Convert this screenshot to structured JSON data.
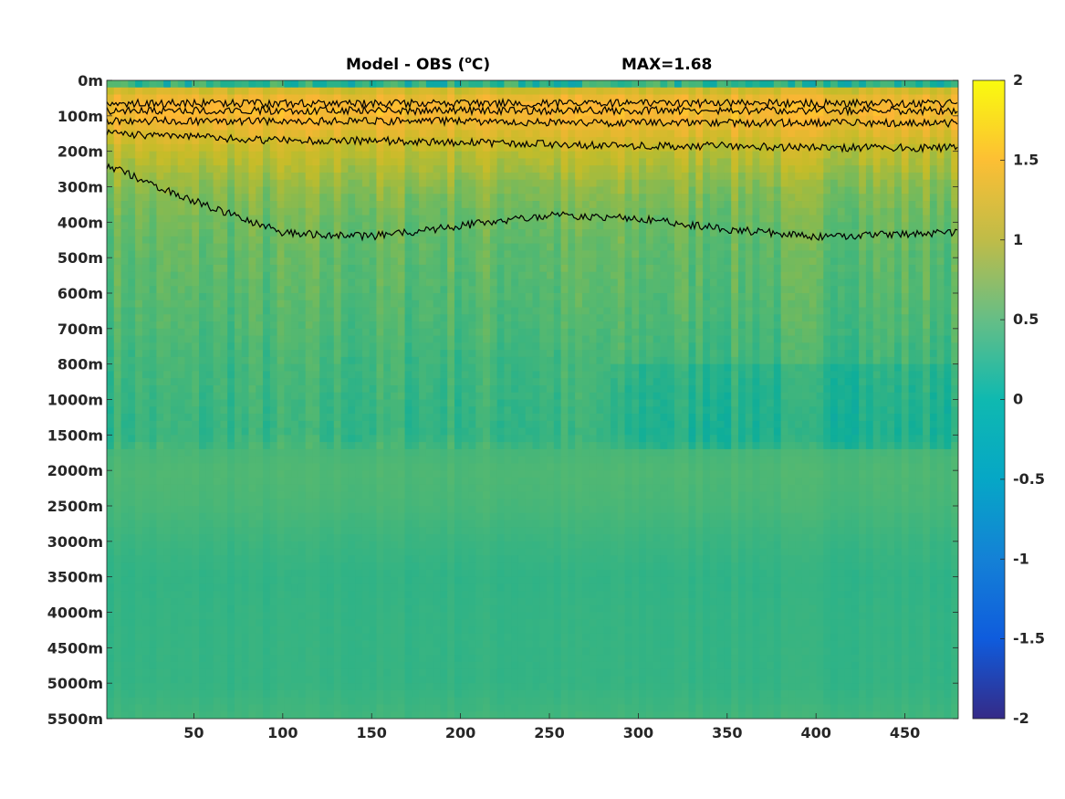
{
  "chart_data": {
    "type": "heatmap",
    "title": {
      "main": "Model - OBS (",
      "sup": "o",
      "unit": "C)",
      "max_label": "MAX=1.68"
    },
    "x": {
      "range": [
        1,
        480
      ],
      "ticks": [
        "50",
        "100",
        "150",
        "200",
        "250",
        "300",
        "350",
        "400",
        "450"
      ],
      "tick_values": [
        50,
        100,
        150,
        200,
        250,
        300,
        350,
        400,
        450
      ]
    },
    "y": {
      "scale": "categorical-depth",
      "ticks": [
        "0m",
        "100m",
        "200m",
        "300m",
        "400m",
        "500m",
        "600m",
        "700m",
        "800m",
        "1000m",
        "1500m",
        "2000m",
        "2500m",
        "3000m",
        "3500m",
        "4000m",
        "4500m",
        "5000m",
        "5500m"
      ]
    },
    "colorbar": {
      "range": [
        -2,
        2
      ],
      "ticks": [
        "2",
        "1.5",
        "1",
        "0.5",
        "0",
        "-0.5",
        "-1",
        "-1.5",
        "-2"
      ],
      "tick_values": [
        2,
        1.5,
        1,
        0.5,
        0,
        -0.5,
        -1,
        -1.5,
        -2
      ],
      "colormap": "parula",
      "colors": [
        "#352a87",
        "#0268e1",
        "#108ed2",
        "#0fae99",
        "#5ab96d",
        "#c4bc29",
        "#feb535",
        "#f9fb0e"
      ]
    },
    "depth_profile": {
      "depth_index": [
        0,
        0.3,
        0.6,
        1,
        1.5,
        2,
        2.5,
        3,
        3.5,
        4,
        5,
        6,
        7,
        8,
        9,
        10,
        10.5,
        11,
        12,
        13,
        14,
        15,
        16,
        17,
        18
      ],
      "mean_anomaly": [
        0.2,
        1.0,
        1.35,
        1.4,
        1.1,
        0.85,
        0.7,
        0.55,
        0.45,
        0.38,
        0.3,
        0.25,
        0.18,
        0.1,
        0.05,
        0.0,
        0.15,
        0.2,
        0.15,
        0.05,
        -0.02,
        0.0,
        0.0,
        0.0,
        0.1
      ]
    },
    "contours": [
      {
        "level": 0.5,
        "depth_index": [
          0.65,
          0.65,
          0.65,
          0.65,
          0.65,
          0.65,
          0.65,
          0.65,
          0.65,
          0.65
        ]
      },
      {
        "level": 1,
        "depth_index": [
          0.85,
          0.85,
          0.85,
          0.85,
          0.85,
          0.85,
          0.85,
          0.85,
          0.85,
          0.85
        ]
      },
      {
        "level": 1.5,
        "depth_index": [
          1.15,
          1.15,
          1.15,
          1.15,
          1.15,
          1.2,
          1.2,
          1.2,
          1.2,
          1.2
        ]
      },
      {
        "level": 1,
        "depth_index": [
          1.5,
          1.6,
          1.7,
          1.7,
          1.75,
          1.8,
          1.85,
          1.85,
          1.9,
          1.9
        ]
      },
      {
        "level": 0.5,
        "depth_index": [
          2.4,
          3.4,
          4.3,
          4.4,
          4.1,
          3.8,
          3.9,
          4.2,
          4.4,
          4.3
        ]
      }
    ],
    "contour_x": [
      1,
      50,
      100,
      150,
      200,
      250,
      300,
      350,
      400,
      480
    ]
  }
}
